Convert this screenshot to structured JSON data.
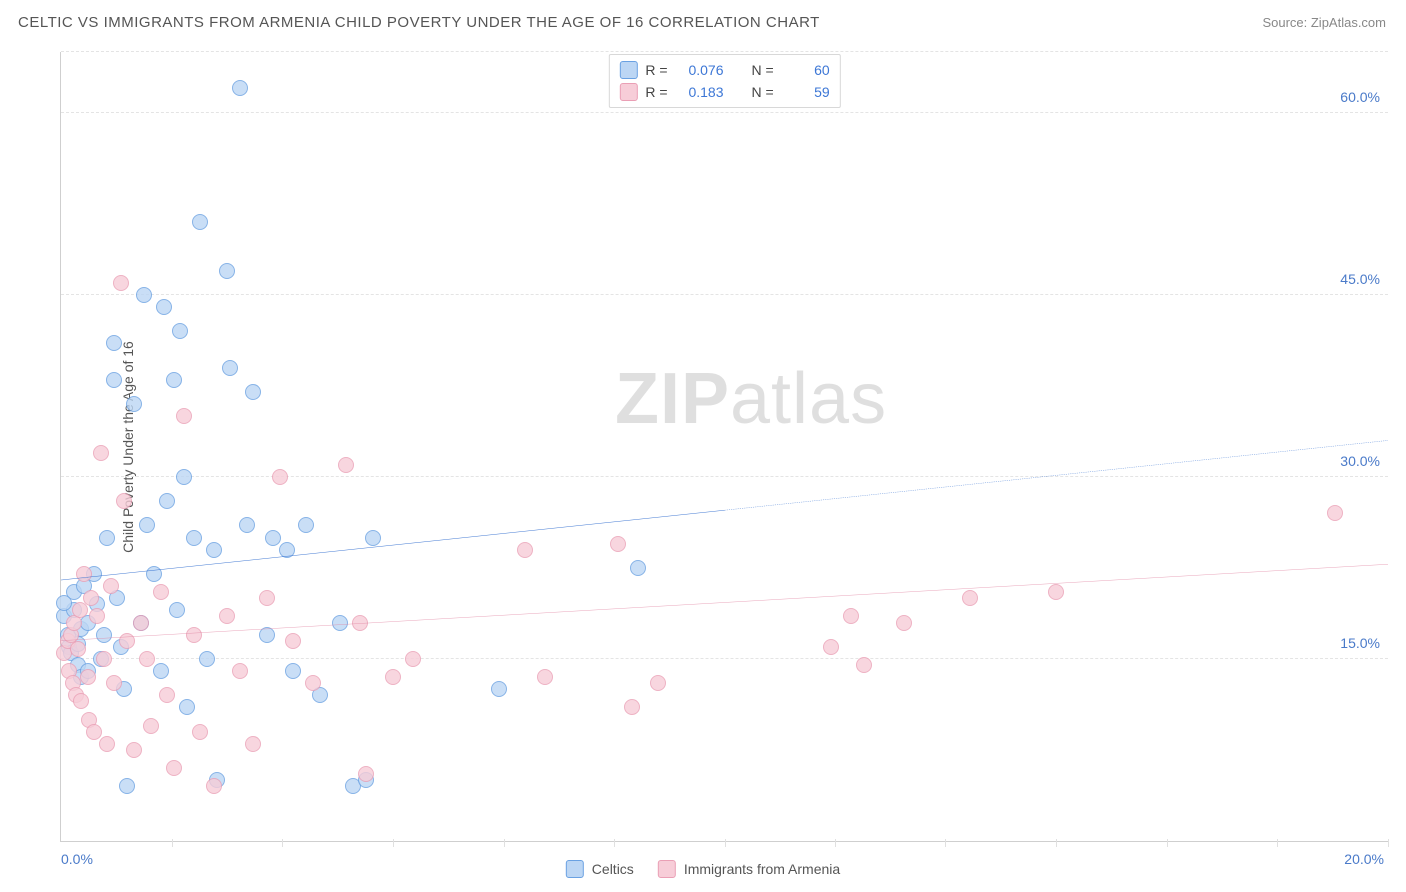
{
  "header": {
    "title": "CELTIC VS IMMIGRANTS FROM ARMENIA CHILD POVERTY UNDER THE AGE OF 16 CORRELATION CHART",
    "source_prefix": "Source: ",
    "source_name": "ZipAtlas.com"
  },
  "chart": {
    "type": "scatter",
    "ylabel": "Child Poverty Under the Age of 16",
    "xlim": [
      0,
      20
    ],
    "ylim": [
      0,
      65
    ],
    "y_ticks": [
      15.0,
      30.0,
      45.0,
      60.0
    ],
    "y_tick_labels": [
      "15.0%",
      "30.0%",
      "45.0%",
      "60.0%"
    ],
    "x_minor_ticks": [
      1.67,
      3.33,
      5.0,
      6.67,
      8.33,
      10.0,
      11.67,
      13.33,
      15.0,
      16.67,
      18.33,
      20.0
    ],
    "x_tick_zero": "0.0%",
    "x_tick_max": "20.0%",
    "background_color": "#ffffff",
    "grid_color": "#e4e4e4",
    "axis_color": "#cfcfcf",
    "tick_label_color": "#4a7ac9",
    "label_fontsize": 14,
    "marker_radius": 8,
    "series": [
      {
        "id": "celtics",
        "label": "Celtics",
        "fill": "#bcd6f4",
        "stroke": "#6aa1e2",
        "r_value": "0.076",
        "n_value": "60",
        "trend_y_at_x0": 21.5,
        "trend_y_at_x20": 33.0,
        "trend_solid_until_x": 10.0,
        "points": [
          [
            0.05,
            18.5
          ],
          [
            0.1,
            17
          ],
          [
            0.12,
            16
          ],
          [
            0.15,
            15.5
          ],
          [
            0.2,
            19
          ],
          [
            0.2,
            20.5
          ],
          [
            0.25,
            16.2
          ],
          [
            0.25,
            14.5
          ],
          [
            0.3,
            17.5
          ],
          [
            0.3,
            13.5
          ],
          [
            0.35,
            21
          ],
          [
            0.4,
            18
          ],
          [
            0.4,
            14
          ],
          [
            0.5,
            22
          ],
          [
            0.55,
            19.5
          ],
          [
            0.6,
            15
          ],
          [
            0.65,
            17
          ],
          [
            0.7,
            25
          ],
          [
            0.8,
            38
          ],
          [
            0.8,
            41
          ],
          [
            0.85,
            20
          ],
          [
            0.9,
            16
          ],
          [
            0.95,
            12.5
          ],
          [
            1.0,
            4.5
          ],
          [
            1.1,
            36
          ],
          [
            1.2,
            18
          ],
          [
            1.25,
            45
          ],
          [
            1.3,
            26
          ],
          [
            1.4,
            22
          ],
          [
            1.5,
            14
          ],
          [
            1.55,
            44
          ],
          [
            1.6,
            28
          ],
          [
            1.7,
            38
          ],
          [
            1.75,
            19
          ],
          [
            1.8,
            42
          ],
          [
            1.85,
            30
          ],
          [
            1.9,
            11
          ],
          [
            2.0,
            25
          ],
          [
            2.1,
            51
          ],
          [
            2.2,
            15
          ],
          [
            2.3,
            24
          ],
          [
            2.35,
            5
          ],
          [
            2.5,
            47
          ],
          [
            2.55,
            39
          ],
          [
            2.7,
            62
          ],
          [
            2.8,
            26
          ],
          [
            2.9,
            37
          ],
          [
            3.1,
            17
          ],
          [
            3.2,
            25
          ],
          [
            3.4,
            24
          ],
          [
            3.5,
            14
          ],
          [
            3.7,
            26
          ],
          [
            3.9,
            12
          ],
          [
            4.2,
            18
          ],
          [
            4.4,
            4.5
          ],
          [
            4.6,
            5
          ],
          [
            4.7,
            25
          ],
          [
            6.6,
            12.5
          ],
          [
            8.7,
            22.5
          ],
          [
            0.05,
            19.6
          ]
        ]
      },
      {
        "id": "armenia",
        "label": "Immigigrants from Armenia",
        "label_display": "Immigrants from Armenia",
        "fill": "#f7cdd8",
        "stroke": "#ea9fb5",
        "r_value": "0.183",
        "n_value": "59",
        "trend_y_at_x0": 16.5,
        "trend_y_at_x20": 22.8,
        "trend_solid_until_x": 20.0,
        "points": [
          [
            0.05,
            15.5
          ],
          [
            0.1,
            16.5
          ],
          [
            0.12,
            14
          ],
          [
            0.15,
            17
          ],
          [
            0.18,
            13
          ],
          [
            0.2,
            18
          ],
          [
            0.22,
            12
          ],
          [
            0.25,
            15.8
          ],
          [
            0.28,
            19
          ],
          [
            0.3,
            11.5
          ],
          [
            0.35,
            22
          ],
          [
            0.4,
            13.5
          ],
          [
            0.42,
            10
          ],
          [
            0.45,
            20
          ],
          [
            0.5,
            9
          ],
          [
            0.55,
            18.5
          ],
          [
            0.6,
            32
          ],
          [
            0.65,
            15
          ],
          [
            0.7,
            8
          ],
          [
            0.75,
            21
          ],
          [
            0.8,
            13
          ],
          [
            0.9,
            46
          ],
          [
            0.95,
            28
          ],
          [
            1.0,
            16.5
          ],
          [
            1.1,
            7.5
          ],
          [
            1.2,
            18
          ],
          [
            1.3,
            15
          ],
          [
            1.35,
            9.5
          ],
          [
            1.5,
            20.5
          ],
          [
            1.6,
            12
          ],
          [
            1.7,
            6
          ],
          [
            1.85,
            35
          ],
          [
            2.0,
            17
          ],
          [
            2.1,
            9
          ],
          [
            2.3,
            4.5
          ],
          [
            2.5,
            18.5
          ],
          [
            2.7,
            14
          ],
          [
            2.9,
            8
          ],
          [
            3.1,
            20
          ],
          [
            3.3,
            30
          ],
          [
            3.5,
            16.5
          ],
          [
            3.8,
            13
          ],
          [
            4.3,
            31
          ],
          [
            4.5,
            18
          ],
          [
            4.6,
            5.5
          ],
          [
            5.0,
            13.5
          ],
          [
            5.3,
            15
          ],
          [
            7.0,
            24
          ],
          [
            7.3,
            13.5
          ],
          [
            8.4,
            24.5
          ],
          [
            8.6,
            11
          ],
          [
            9.0,
            13
          ],
          [
            11.6,
            16
          ],
          [
            11.9,
            18.5
          ],
          [
            12.1,
            14.5
          ],
          [
            12.7,
            18
          ],
          [
            13.7,
            20
          ],
          [
            15.0,
            20.5
          ],
          [
            19.2,
            27
          ]
        ]
      }
    ],
    "legend_top": {
      "r_label": "R =",
      "n_label": "N ="
    },
    "watermark": {
      "part1": "ZIP",
      "part2": "atlas"
    }
  }
}
